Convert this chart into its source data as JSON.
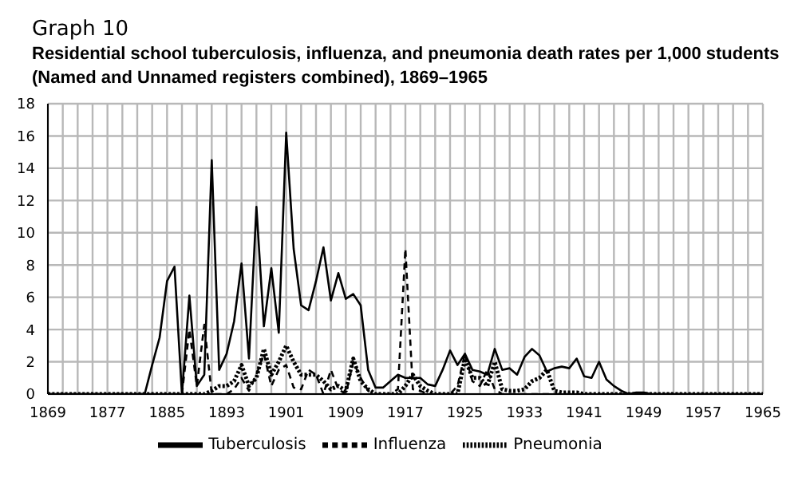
{
  "chart_data": {
    "type": "line",
    "title": "Graph 10",
    "subtitle": "Residential school tuberculosis, influenza, and pneumonia death rates per 1,000 students (Named and Unnamed registers combined), 1869–1965",
    "x": [
      1869,
      1870,
      1871,
      1872,
      1873,
      1874,
      1875,
      1876,
      1877,
      1878,
      1879,
      1880,
      1881,
      1882,
      1883,
      1884,
      1885,
      1886,
      1887,
      1888,
      1889,
      1890,
      1891,
      1892,
      1893,
      1894,
      1895,
      1896,
      1897,
      1898,
      1899,
      1900,
      1901,
      1902,
      1903,
      1904,
      1905,
      1906,
      1907,
      1908,
      1909,
      1910,
      1911,
      1912,
      1913,
      1914,
      1915,
      1916,
      1917,
      1918,
      1919,
      1920,
      1921,
      1922,
      1923,
      1924,
      1925,
      1926,
      1927,
      1928,
      1929,
      1930,
      1931,
      1932,
      1933,
      1934,
      1935,
      1936,
      1937,
      1938,
      1939,
      1940,
      1941,
      1942,
      1943,
      1944,
      1945,
      1946,
      1947,
      1948,
      1949,
      1950,
      1951,
      1952,
      1953,
      1954,
      1955,
      1956,
      1957,
      1958,
      1959,
      1960,
      1961,
      1962,
      1963,
      1964,
      1965
    ],
    "series": [
      {
        "name": "Tuberculosis",
        "color": "#000000",
        "line_style": "solid",
        "values": [
          0,
          0,
          0,
          0,
          0,
          0,
          0,
          0,
          0,
          0,
          0,
          0,
          0,
          0,
          1.8,
          3.5,
          7,
          7.9,
          0,
          6.1,
          0.5,
          1.2,
          14.5,
          1.5,
          2.5,
          4.5,
          8.1,
          2.2,
          11.6,
          4.2,
          7.8,
          3.8,
          16.2,
          9,
          5.5,
          5.2,
          7,
          9.1,
          5.8,
          7.5,
          5.9,
          6.2,
          5.5,
          1.5,
          0.4,
          0.4,
          0.8,
          1.2,
          1,
          1,
          1,
          0.6,
          0.5,
          1.5,
          2.7,
          1.8,
          2.5,
          1.5,
          1.4,
          1.2,
          2.8,
          1.5,
          1.6,
          1.2,
          2.3,
          2.8,
          2.4,
          1.4,
          1.6,
          1.7,
          1.6,
          2.2,
          1.1,
          1,
          2,
          0.9,
          0.5,
          0.2,
          0,
          0.1,
          0.1,
          0,
          0,
          0,
          0,
          0,
          0,
          0,
          0,
          0,
          0,
          0,
          0,
          0,
          0,
          0,
          0
        ]
      },
      {
        "name": "Influenza",
        "color": "#000000",
        "line_style": "dashed",
        "values": [
          0,
          0,
          0,
          0,
          0,
          0,
          0,
          0,
          0,
          0,
          0,
          0,
          0,
          0,
          0,
          0,
          0,
          0,
          0,
          4,
          0.5,
          4.3,
          0,
          0,
          0,
          0.3,
          1,
          0.2,
          1.2,
          2.5,
          0.5,
          1.5,
          1.8,
          0.4,
          0.3,
          1.5,
          1.2,
          0,
          1.5,
          0.3,
          0,
          2,
          1,
          0.2,
          0,
          0,
          0,
          0.3,
          9,
          0.3,
          0.2,
          0,
          0,
          0,
          0,
          0.5,
          2.5,
          0.8,
          0.5,
          1.5,
          0.3,
          0,
          0,
          0,
          0,
          0,
          0,
          0,
          0,
          0,
          0,
          0,
          0,
          0,
          0,
          0,
          0,
          0,
          0,
          0,
          0,
          0,
          0,
          0,
          0,
          0,
          0,
          0,
          0,
          0,
          0,
          0,
          0,
          0,
          0,
          0,
          0
        ]
      },
      {
        "name": "Pneumonia",
        "color": "#000000",
        "line_style": "dotted",
        "values": [
          0,
          0,
          0,
          0,
          0,
          0,
          0,
          0,
          0,
          0,
          0,
          0,
          0,
          0,
          0,
          0,
          0,
          0,
          0,
          0,
          0,
          0,
          0.2,
          0.5,
          0.5,
          0.8,
          1.8,
          0.5,
          1,
          2.8,
          1.2,
          2,
          3,
          2,
          1.2,
          1.2,
          1.2,
          0.8,
          0.3,
          0.5,
          0.2,
          2.2,
          0.8,
          0.3,
          0,
          0,
          0,
          0,
          0.5,
          1.2,
          0.5,
          0.2,
          0,
          0,
          0,
          0,
          2.2,
          1,
          1,
          0.5,
          2,
          0.3,
          0.2,
          0.2,
          0.3,
          0.8,
          1,
          1.5,
          0.2,
          0.1,
          0.1,
          0.1,
          0,
          0,
          0,
          0,
          0,
          0,
          0,
          0,
          0,
          0,
          0,
          0,
          0,
          0,
          0,
          0,
          0,
          0,
          0,
          0,
          0,
          0,
          0,
          0,
          0
        ]
      }
    ],
    "xlim": [
      1869,
      1965
    ],
    "xticks": [
      1869,
      {
        "value": 1871,
        "label": null
      },
      {
        "value": 1873,
        "label": null
      },
      {
        "value": 1875,
        "label": null
      },
      1877,
      {
        "value": 1879,
        "label": null
      },
      {
        "value": 1881,
        "label": null
      },
      {
        "value": 1883,
        "label": null
      },
      1885,
      {
        "value": 1887,
        "label": null
      },
      {
        "value": 1889,
        "label": null
      },
      {
        "value": 1891,
        "label": null
      },
      1893,
      {
        "value": 1895,
        "label": null
      },
      {
        "value": 1897,
        "label": null
      },
      {
        "value": 1899,
        "label": null
      },
      1901,
      {
        "value": 1903,
        "label": null
      },
      {
        "value": 1905,
        "label": null
      },
      {
        "value": 1907,
        "label": null
      },
      1909,
      {
        "value": 1911,
        "label": null
      },
      {
        "value": 1913,
        "label": null
      },
      {
        "value": 1915,
        "label": null
      },
      1917,
      {
        "value": 1919,
        "label": null
      },
      {
        "value": 1921,
        "label": null
      },
      {
        "value": 1923,
        "label": null
      },
      1925,
      {
        "value": 1927,
        "label": null
      },
      {
        "value": 1929,
        "label": null
      },
      {
        "value": 1931,
        "label": null
      },
      1933,
      {
        "value": 1935,
        "label": null
      },
      {
        "value": 1937,
        "label": null
      },
      {
        "value": 1939,
        "label": null
      },
      1941,
      {
        "value": 1943,
        "label": null
      },
      {
        "value": 1945,
        "label": null
      },
      {
        "value": 1947,
        "label": null
      },
      1949,
      {
        "value": 1951,
        "label": null
      },
      {
        "value": 1953,
        "label": null
      },
      {
        "value": 1955,
        "label": null
      },
      1957,
      {
        "value": 1959,
        "label": null
      },
      {
        "value": 1961,
        "label": null
      },
      {
        "value": 1963,
        "label": null
      },
      1965
    ],
    "ylim": [
      0,
      18
    ],
    "yticks": [
      0,
      2,
      4,
      6,
      8,
      10,
      12,
      14,
      16,
      18
    ],
    "grid": true,
    "legend": "bottom",
    "marker": "none"
  }
}
